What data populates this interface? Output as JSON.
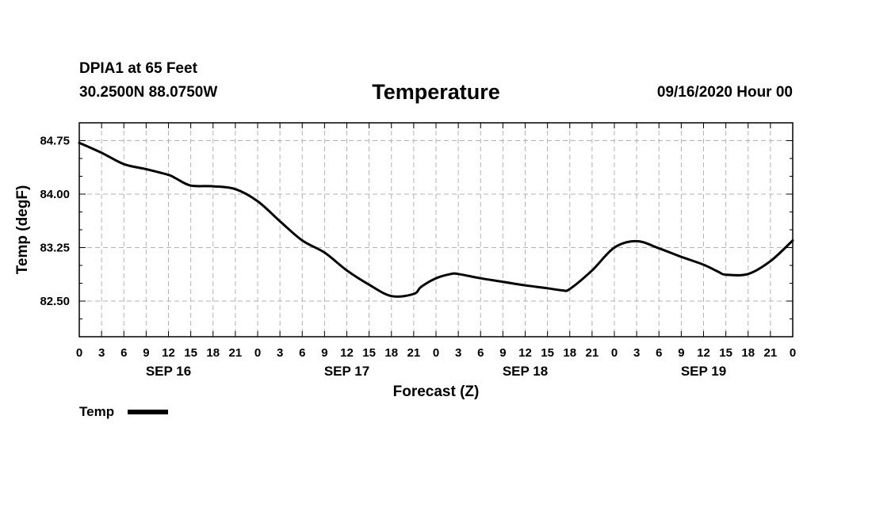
{
  "header": {
    "station": "DPIA1 at 65 Feet",
    "coordinates": "30.2500N 88.0750W",
    "title": "Temperature",
    "datetime": "09/16/2020 Hour 00"
  },
  "chart_data": {
    "type": "line",
    "title": "Temperature",
    "xlabel": "Forecast (Z)",
    "ylabel": "Temp (degF)",
    "ylim": [
      82.0,
      85.0
    ],
    "yticks": [
      82.5,
      83.25,
      84.0,
      84.75
    ],
    "ytick_labels": [
      "82.50",
      "83.25",
      "84.00",
      "84.75"
    ],
    "xlim": [
      0,
      96
    ],
    "xtick_labels": [
      "0",
      "3",
      "6",
      "9",
      "12",
      "15",
      "18",
      "21",
      "0",
      "3",
      "6",
      "9",
      "12",
      "15",
      "18",
      "21",
      "0",
      "3",
      "6",
      "9",
      "12",
      "15",
      "18",
      "21",
      "0",
      "3",
      "6",
      "9",
      "12",
      "15",
      "18",
      "21",
      "0"
    ],
    "day_labels": [
      {
        "label": "SEP 16",
        "hour": 12
      },
      {
        "label": "SEP 17",
        "hour": 36
      },
      {
        "label": "SEP 18",
        "hour": 60
      },
      {
        "label": "SEP 19",
        "hour": 84
      }
    ],
    "grid": true,
    "legend": "bottom-left",
    "series": [
      {
        "name": "Temp",
        "color": "#000000",
        "x": [
          0,
          3,
          6,
          9,
          12,
          13,
          15,
          18,
          21,
          24,
          27,
          30,
          33,
          36,
          39,
          42,
          45,
          46,
          48,
          50,
          51,
          54,
          57,
          60,
          63,
          65,
          66,
          69,
          72,
          75,
          78,
          81,
          84,
          86,
          87,
          90,
          93,
          96
        ],
        "values": [
          84.72,
          84.58,
          84.42,
          84.35,
          84.27,
          84.22,
          84.12,
          84.11,
          84.07,
          83.9,
          83.62,
          83.35,
          83.18,
          82.93,
          82.73,
          82.57,
          82.6,
          82.7,
          82.82,
          82.88,
          82.88,
          82.82,
          82.77,
          82.72,
          82.68,
          82.65,
          82.67,
          82.93,
          83.25,
          83.34,
          83.24,
          83.12,
          83.01,
          82.91,
          82.87,
          82.88,
          83.06,
          83.35
        ]
      }
    ]
  }
}
